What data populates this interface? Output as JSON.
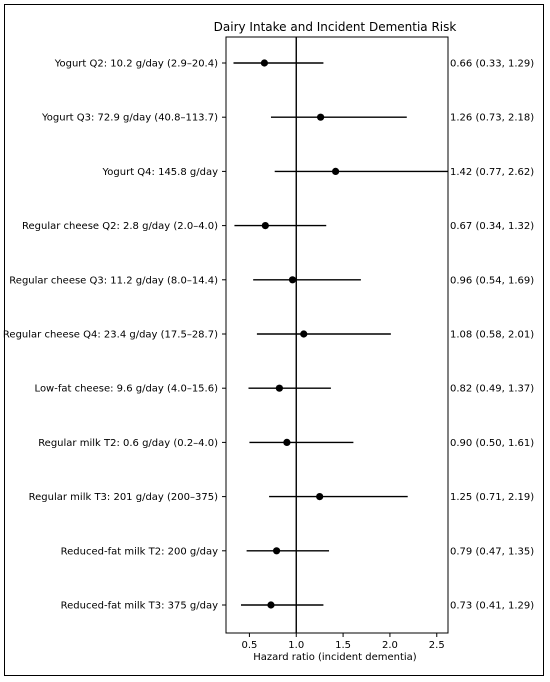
{
  "chart_data": {
    "type": "forest",
    "title": "Dairy Intake and Incident Dementia Risk",
    "xlabel": "Hazard ratio (incident dementia)",
    "xlim": [
      0.25,
      2.62
    ],
    "xticks": [
      0.5,
      1.0,
      1.5,
      2.0,
      2.5
    ],
    "xtick_labels": [
      "0.5",
      "1.0",
      "1.5",
      "2.0",
      "2.5"
    ],
    "reference_line": 1.0,
    "grid": false,
    "rows": [
      {
        "label": "Yogurt Q2: 10.2 g/day (2.9–20.4)",
        "hr": 0.66,
        "lo": 0.33,
        "hi": 1.29,
        "ci_text": "0.66 (0.33, 1.29)"
      },
      {
        "label": "Yogurt Q3: 72.9 g/day (40.8–113.7)",
        "hr": 1.26,
        "lo": 0.73,
        "hi": 2.18,
        "ci_text": "1.26 (0.73, 2.18)"
      },
      {
        "label": "Yogurt Q4: 145.8 g/day",
        "hr": 1.42,
        "lo": 0.77,
        "hi": 2.62,
        "ci_text": "1.42 (0.77, 2.62)"
      },
      {
        "label": "Regular cheese Q2: 2.8 g/day (2.0–4.0)",
        "hr": 0.67,
        "lo": 0.34,
        "hi": 1.32,
        "ci_text": "0.67 (0.34, 1.32)"
      },
      {
        "label": "Regular cheese Q3: 11.2 g/day (8.0–14.4)",
        "hr": 0.96,
        "lo": 0.54,
        "hi": 1.69,
        "ci_text": "0.96 (0.54, 1.69)"
      },
      {
        "label": "Regular cheese Q4: 23.4 g/day (17.5–28.7)",
        "hr": 1.08,
        "lo": 0.58,
        "hi": 2.01,
        "ci_text": "1.08 (0.58, 2.01)"
      },
      {
        "label": "Low-fat cheese: 9.6 g/day (4.0–15.6)",
        "hr": 0.82,
        "lo": 0.49,
        "hi": 1.37,
        "ci_text": "0.82 (0.49, 1.37)"
      },
      {
        "label": "Regular milk T2: 0.6 g/day (0.2–4.0)",
        "hr": 0.9,
        "lo": 0.5,
        "hi": 1.61,
        "ci_text": "0.90 (0.50, 1.61)"
      },
      {
        "label": "Regular milk T3: 201 g/day (200–375)",
        "hr": 1.25,
        "lo": 0.71,
        "hi": 2.19,
        "ci_text": "1.25 (0.71, 2.19)"
      },
      {
        "label": "Reduced-fat milk T2: 200 g/day",
        "hr": 0.79,
        "lo": 0.47,
        "hi": 1.35,
        "ci_text": "0.79 (0.47, 1.35)"
      },
      {
        "label": "Reduced-fat milk T3: 375 g/day",
        "hr": 0.73,
        "lo": 0.41,
        "hi": 1.29,
        "ci_text": "0.73 (0.41, 1.29)"
      }
    ],
    "colors": {
      "marker": "#000000",
      "line": "#000000"
    }
  }
}
